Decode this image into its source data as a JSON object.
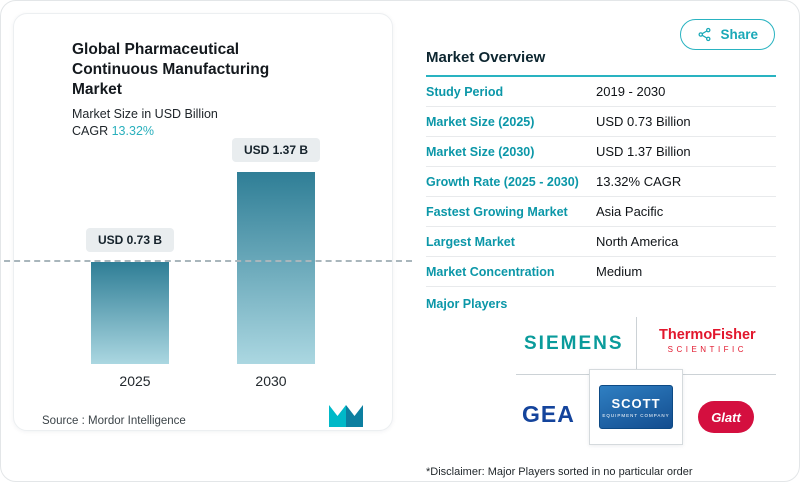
{
  "colors": {
    "accent": "#29b3c1",
    "bar_top": "#2f7e96",
    "bar_bottom": "#abd7e1",
    "siemens": "#0a9b9b",
    "thermo": "#e2172d",
    "gea": "#14449c",
    "scott": "#134d8f",
    "glatt": "#d40f3f"
  },
  "icons": {
    "share": "share-nodes",
    "brand_logo": "mordor-m-mark"
  },
  "share_button": {
    "label": "Share"
  },
  "chart_card": {
    "title": "Global Pharmaceutical Continuous Manufacturing Market",
    "subtitle": "Market Size in USD Billion",
    "cagr_label": "CAGR",
    "cagr_value": "13.32%",
    "source_label": "Source :",
    "source_value": "Mordor Intelligence"
  },
  "chart_data": {
    "type": "bar",
    "title": "Global Pharmaceutical Continuous Manufacturing Market",
    "ylabel": "Market Size in USD Billion",
    "categories": [
      "2025",
      "2030"
    ],
    "values": [
      0.73,
      1.37
    ],
    "bar_labels": [
      "USD 0.73 B",
      "USD 1.37 B"
    ],
    "ylim": [
      0,
      1.5
    ],
    "reference_line": 0.73,
    "grid": false,
    "legend": false
  },
  "overview": {
    "title": "Market Overview",
    "rows": [
      {
        "label": "Study Period",
        "value": "2019 - 2030"
      },
      {
        "label": "Market Size (2025)",
        "value": "USD 0.73 Billion"
      },
      {
        "label": "Market Size (2030)",
        "value": "USD 1.37 Billion"
      },
      {
        "label": "Growth Rate (2025 - 2030)",
        "value": "13.32% CAGR"
      },
      {
        "label": "Fastest Growing Market",
        "value": "Asia Pacific"
      },
      {
        "label": "Largest Market",
        "value": "North America"
      },
      {
        "label": "Market Concentration",
        "value": "Medium"
      }
    ],
    "major_players_label": "Major Players",
    "players": [
      {
        "name": "SIEMENS"
      },
      {
        "name": "ThermoFisher",
        "sub": "SCIENTIFIC"
      },
      {
        "name": "GEA"
      },
      {
        "name": "SCOTT",
        "sub": "EQUIPMENT COMPANY"
      },
      {
        "name": "Glatt"
      }
    ],
    "disclaimer": "*Disclaimer: Major Players sorted in no particular order"
  }
}
